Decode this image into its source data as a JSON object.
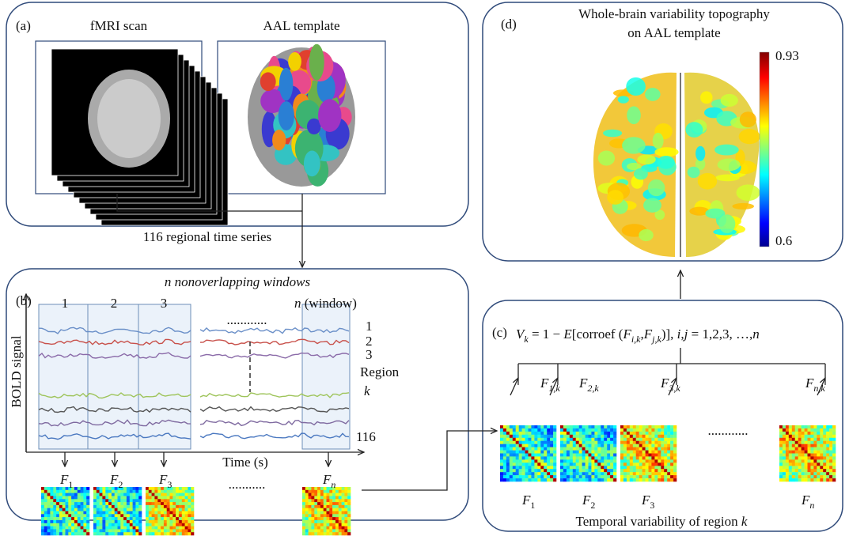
{
  "panel_a": {
    "label": "(a)",
    "fmri_title": "fMRI scan",
    "aal_title": "AAL template"
  },
  "connector_label": "116 regional time series",
  "panel_b": {
    "label": "(b)",
    "title": "n nonoverlapping windows",
    "windows": [
      "1",
      "2",
      "3"
    ],
    "window_n": [
      {
        "text": "n",
        "style": "italic"
      },
      {
        "text": " (window)"
      }
    ],
    "window_dots": "............",
    "regions": [
      "1",
      "2",
      "3"
    ],
    "region_axis": "Region",
    "region_k": "k",
    "region_last": "116",
    "y_axis": "BOLD signal",
    "x_axis": "Time (s)",
    "matrices": [
      [
        {
          "text": "F",
          "style": "italic"
        },
        {
          "text": "1",
          "style": "sub"
        }
      ],
      [
        {
          "text": "F",
          "style": "italic"
        },
        {
          "text": "2",
          "style": "sub"
        }
      ],
      [
        {
          "text": "F",
          "style": "italic"
        },
        {
          "text": "3",
          "style": "sub"
        }
      ],
      [
        {
          "text": "F",
          "style": "italic"
        },
        {
          "text": "n",
          "style": "sub-italic"
        }
      ]
    ],
    "matrix_dots": "..........."
  },
  "panel_c": {
    "label": "(c)",
    "formula": [
      {
        "text": "V",
        "style": "italic"
      },
      {
        "text": "k",
        "style": "sub-italic"
      },
      {
        "text": " = 1 − "
      },
      {
        "text": "E",
        "style": "italic"
      },
      {
        "text": "[corroef ("
      },
      {
        "text": "F",
        "style": "italic"
      },
      {
        "text": "i,k",
        "style": "sub-italic"
      },
      {
        "text": ","
      },
      {
        "text": "F",
        "style": "italic"
      },
      {
        "text": "j,k",
        "style": "sub-italic"
      },
      {
        "text": ")], "
      },
      {
        "text": "i",
        "style": "italic"
      },
      {
        "text": ","
      },
      {
        "text": "j",
        "style": "italic"
      },
      {
        "text": " = 1,2,3, …,"
      },
      {
        "text": "n",
        "style": "italic"
      }
    ],
    "matrix_inputs": [
      [
        {
          "text": "F",
          "style": "italic"
        },
        {
          "text": "1,k",
          "style": "sub-italic"
        }
      ],
      [
        {
          "text": "F",
          "style": "italic"
        },
        {
          "text": "2,k",
          "style": "sub-italic"
        }
      ],
      [
        {
          "text": "F",
          "style": "italic"
        },
        {
          "text": "3,k",
          "style": "sub-italic"
        }
      ],
      [
        {
          "text": "F",
          "style": "italic"
        },
        {
          "text": "n,k",
          "style": "sub-italic"
        }
      ]
    ],
    "matrices": [
      [
        {
          "text": "F",
          "style": "italic"
        },
        {
          "text": "1",
          "style": "sub"
        }
      ],
      [
        {
          "text": "F",
          "style": "italic"
        },
        {
          "text": "2",
          "style": "sub"
        }
      ],
      [
        {
          "text": "F",
          "style": "italic"
        },
        {
          "text": "3",
          "style": "sub"
        }
      ],
      [
        {
          "text": "F",
          "style": "italic"
        },
        {
          "text": "n",
          "style": "sub-italic"
        }
      ]
    ],
    "matrix_dots": "............",
    "caption": [
      {
        "text": "Temporal variability of region "
      },
      {
        "text": "k",
        "style": "italic"
      }
    ]
  },
  "panel_d": {
    "label": "(d)",
    "title_lines": [
      "Whole-brain variability topography",
      "on AAL template"
    ],
    "colorbar_max": 0.93,
    "colorbar_min": 0.6
  }
}
